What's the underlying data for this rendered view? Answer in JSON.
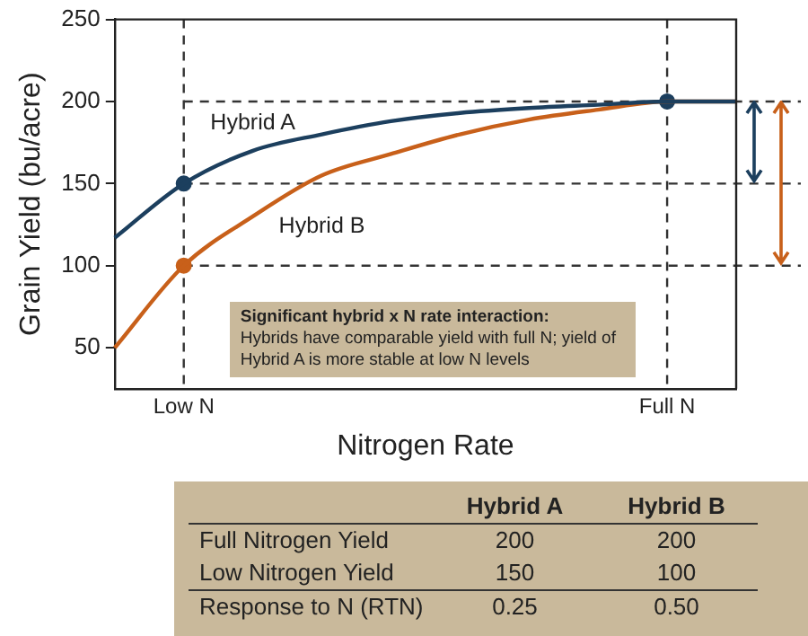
{
  "chart_data": {
    "type": "line",
    "xlabel": "Nitrogen Rate",
    "ylabel": "Grain Yield (bu/acre)",
    "categories": [
      null,
      "Low N",
      null,
      null,
      null,
      null,
      null,
      null,
      "Full N",
      null
    ],
    "ylim": [
      25,
      250
    ],
    "yticks": [
      50,
      100,
      150,
      200,
      250
    ],
    "grid": false,
    "legend": false,
    "marker": "none",
    "line_style": "solid",
    "series": [
      {
        "name": "Hybrid A",
        "color": "#1c3f5e",
        "values": [
          117,
          150,
          170,
          180,
          188,
          193,
          196,
          198,
          200,
          200
        ]
      },
      {
        "name": "Hybrid B",
        "color": "#c8601a",
        "values": [
          50,
          100,
          130,
          155,
          168,
          180,
          189,
          195,
          200,
          200
        ]
      },
      {
        "type": "scatter",
        "marker": "circle",
        "color": "#1c3f5e",
        "x": [
          "Low N",
          "Full N"
        ],
        "values": [
          150,
          200
        ]
      },
      {
        "type": "scatter",
        "marker": "circle",
        "color": "#c8601a",
        "x": [
          "Low N"
        ],
        "values": [
          100
        ]
      }
    ],
    "ref_lines": [
      {
        "axis": "x",
        "value": "Low N",
        "line_style": "dashed",
        "color": "#333333"
      },
      {
        "axis": "x",
        "value": "Full N",
        "line_style": "dashed",
        "color": "#333333"
      },
      {
        "axis": "y",
        "value": 200,
        "line_style": "dashed",
        "color": "#333333"
      },
      {
        "axis": "y",
        "value": 150,
        "line_style": "dashed",
        "color": "#333333"
      },
      {
        "axis": "y",
        "value": 100,
        "line_style": "dashed",
        "color": "#333333"
      }
    ],
    "annotations": [
      "Significant hybrid x N rate interaction:",
      "Hybrids have comparable yield with full N; yield of Hybrid A is more stable at low N levels",
      "Hybrid A",
      "Hybrid B",
      "Full Nitrogen Yield",
      "200",
      "200",
      "Low Nitrogen Yield",
      "150",
      "100",
      "Response to N (RTN)",
      "0.25",
      "0.50"
    ]
  }
}
